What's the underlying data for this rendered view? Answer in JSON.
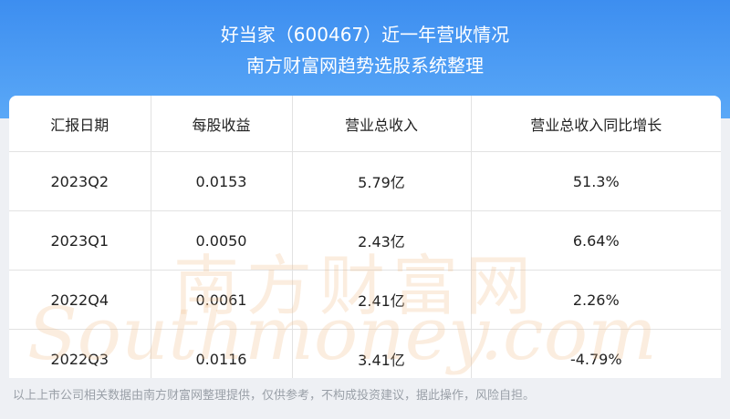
{
  "header": {
    "title": "好当家（600467）近一年营收情况",
    "subtitle": "南方财富网趋势选股系统整理"
  },
  "table": {
    "headers": [
      "汇报日期",
      "每股收益",
      "营业总收入",
      "营业总收入同比增长"
    ],
    "rows": [
      [
        "2023Q2",
        "0.0153",
        "5.79亿",
        "51.3%"
      ],
      [
        "2023Q1",
        "0.0050",
        "2.43亿",
        "6.64%"
      ],
      [
        "2022Q4",
        "0.0061",
        "2.41亿",
        "2.26%"
      ],
      [
        "2022Q3",
        "0.0116",
        "3.41亿",
        "-4.79%"
      ]
    ]
  },
  "watermark": {
    "cn": "南方财富网",
    "en": "Southmoney.com"
  },
  "footer": "以上上市公司相关数据由南方财富网整理提供，仅供参考，不构成投资建议，据此操作，风险自担。"
}
